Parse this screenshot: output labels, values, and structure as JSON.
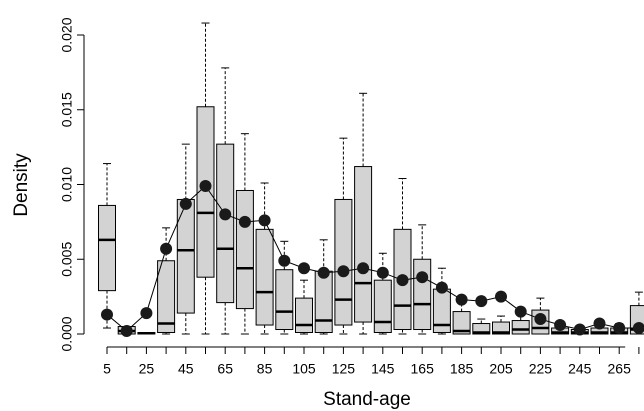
{
  "chart_data": {
    "type": "boxplot",
    "xlabel": "Stand-age",
    "ylabel": "Density",
    "categories": [
      "5",
      null,
      "25",
      null,
      "45",
      null,
      "65",
      null,
      "85",
      null,
      "105",
      null,
      "125",
      null,
      "145",
      null,
      "165",
      null,
      "185",
      null,
      "205",
      null,
      "225",
      null,
      "245",
      null,
      "265",
      null
    ],
    "boxes": {
      "color": "#d3d3d3",
      "whisker_low": [
        0.0004,
        0,
        0,
        0,
        0,
        0,
        0,
        0,
        0,
        0,
        0,
        0,
        0,
        0,
        0,
        0,
        0,
        0,
        0,
        0,
        0,
        0,
        0,
        0,
        0,
        0,
        0,
        0
      ],
      "q1": [
        0.0029,
        0,
        0,
        0.0001,
        0.0014,
        0.0038,
        0.0021,
        0.0017,
        0.0006,
        0.0003,
        0.0001,
        0.0001,
        0.0006,
        0.0008,
        0.0001,
        0.0003,
        0.0003,
        0.0001,
        0,
        0,
        0,
        0,
        0,
        0,
        0,
        0,
        0,
        0
      ],
      "median": [
        0.0063,
        0.0002,
        5e-05,
        0.0007,
        0.0056,
        0.0081,
        0.0057,
        0.0044,
        0.0028,
        0.0015,
        0.0006,
        0.0009,
        0.0023,
        0.0034,
        0.0008,
        0.0019,
        0.002,
        0.0006,
        0.0002,
        0.0001,
        0.0001,
        0.0003,
        0.0004,
        0.0001,
        0.0001,
        0.0001,
        0.0001,
        0.0003
      ],
      "q3": [
        0.0086,
        0.0005,
        0.0001,
        0.0049,
        0.009,
        0.0152,
        0.0127,
        0.0096,
        0.007,
        0.0043,
        0.0024,
        0.0042,
        0.009,
        0.0112,
        0.0036,
        0.007,
        0.005,
        0.003,
        0.0015,
        0.0007,
        0.0008,
        0.0009,
        0.0016,
        0.0004,
        0.0003,
        0.0004,
        0.0004,
        0.0019
      ],
      "whisker_high": [
        0.0114,
        0.0005,
        0.0001,
        0.0071,
        0.0127,
        0.0208,
        0.0178,
        0.0134,
        0.0101,
        0.0062,
        0.0036,
        0.0063,
        0.0131,
        0.0161,
        0.0054,
        0.0104,
        0.0073,
        0.0044,
        0.0023,
        0.001,
        0.0012,
        0.0014,
        0.0024,
        0.0006,
        0.0005,
        0.0008,
        0.0007,
        0.0028
      ]
    },
    "points": {
      "color": "#1a1a1a",
      "values": [
        0.0013,
        0.0002,
        0.0014,
        0.0057,
        0.0087,
        0.0099,
        0.008,
        0.0075,
        0.0076,
        0.0049,
        0.0044,
        0.0041,
        0.0042,
        0.0044,
        0.0041,
        0.0036,
        0.0038,
        0.0031,
        0.0023,
        0.0022,
        0.0025,
        0.0015,
        0.001,
        0.0006,
        0.0003,
        0.0007,
        0.0004,
        0.0004
      ]
    },
    "ylim": [
      0,
      0.02
    ],
    "yticks": [
      {
        "value": 0,
        "label": "0.000"
      },
      0.005,
      {
        "value": 0.01,
        "label": "0.010"
      },
      0.015,
      {
        "value": 0.02,
        "label": "0.020"
      }
    ]
  }
}
